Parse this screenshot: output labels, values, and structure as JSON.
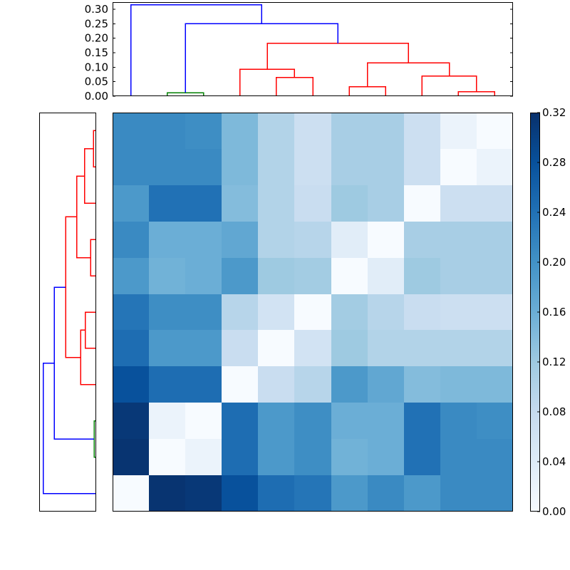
{
  "figure": {
    "type": "clustermap-with-dendrograms",
    "background_color": "#ffffff",
    "axis_color": "#000000",
    "text_color": "#000000",
    "colormap": {
      "name": "Blues",
      "stops": [
        "#f7fbff",
        "#deebf7",
        "#c6dbef",
        "#9ecae1",
        "#6baed6",
        "#4292c6",
        "#2171b5",
        "#08519c",
        "#08306b"
      ]
    },
    "line_colors": {
      "blue": "#0000ff",
      "red": "#ff0000",
      "green": "#008000"
    }
  },
  "chart_data": {
    "type": "heatmap",
    "title": "",
    "value_range": [
      0,
      0.32
    ],
    "grid": false,
    "matrix": {
      "n_rows": 11,
      "n_cols": 11,
      "values": [
        [
          0.21,
          0.21,
          0.205,
          0.145,
          0.1,
          0.07,
          0.11,
          0.11,
          0.07,
          0.02,
          0.0
        ],
        [
          0.21,
          0.21,
          0.21,
          0.145,
          0.1,
          0.07,
          0.11,
          0.11,
          0.07,
          0.0,
          0.02
        ],
        [
          0.19,
          0.24,
          0.24,
          0.14,
          0.1,
          0.075,
          0.12,
          0.11,
          0.0,
          0.07,
          0.07
        ],
        [
          0.21,
          0.16,
          0.16,
          0.17,
          0.1,
          0.095,
          0.035,
          0.0,
          0.11,
          0.11,
          0.11
        ],
        [
          0.19,
          0.155,
          0.16,
          0.19,
          0.12,
          0.115,
          0.0,
          0.035,
          0.12,
          0.11,
          0.11
        ],
        [
          0.235,
          0.205,
          0.205,
          0.095,
          0.06,
          0.0,
          0.115,
          0.095,
          0.075,
          0.07,
          0.07
        ],
        [
          0.245,
          0.19,
          0.19,
          0.075,
          0.0,
          0.06,
          0.12,
          0.1,
          0.1,
          0.1,
          0.1
        ],
        [
          0.28,
          0.245,
          0.245,
          0.0,
          0.075,
          0.095,
          0.19,
          0.17,
          0.14,
          0.145,
          0.145
        ],
        [
          0.31,
          0.02,
          0.0,
          0.245,
          0.19,
          0.205,
          0.16,
          0.16,
          0.24,
          0.21,
          0.205
        ],
        [
          0.315,
          0.0,
          0.02,
          0.245,
          0.19,
          0.205,
          0.155,
          0.16,
          0.24,
          0.21,
          0.21
        ],
        [
          0.0,
          0.315,
          0.31,
          0.28,
          0.245,
          0.235,
          0.19,
          0.21,
          0.19,
          0.21,
          0.21
        ]
      ]
    },
    "top_dendrogram": {
      "n_leaves": 11,
      "axis_tick_labels": [
        "0.00",
        "0.05",
        "0.10",
        "0.15",
        "0.20",
        "0.25",
        "0.30"
      ],
      "axis_tick_values": [
        0,
        0.05,
        0.1,
        0.15,
        0.2,
        0.25,
        0.3
      ],
      "axis_max": 0.3246,
      "merges": [
        {
          "id": "g",
          "a": 1,
          "b": 2,
          "height": 0.012,
          "color": "green"
        },
        {
          "id": "r1",
          "a": 4,
          "b": 5,
          "height": 0.064,
          "color": "red"
        },
        {
          "id": "r2",
          "a": 3,
          "b": "r1",
          "height": 0.093,
          "color": "red"
        },
        {
          "id": "r3",
          "a": 6,
          "b": 7,
          "height": 0.032,
          "color": "red"
        },
        {
          "id": "r4",
          "a": 9,
          "b": 10,
          "height": 0.015,
          "color": "red"
        },
        {
          "id": "r5",
          "a": 8,
          "b": "r4",
          "height": 0.069,
          "color": "red"
        },
        {
          "id": "r6",
          "a": "r3",
          "b": "r5",
          "height": 0.115,
          "color": "red"
        },
        {
          "id": "r7",
          "a": "r2",
          "b": "r6",
          "height": 0.182,
          "color": "red"
        },
        {
          "id": "b1",
          "a": "g",
          "b": "r7",
          "height": 0.25,
          "color": "blue"
        },
        {
          "id": "b2",
          "a": 0,
          "b": "b1",
          "height": 0.315,
          "color": "blue"
        }
      ]
    },
    "left_dendrogram": {
      "n_leaves": 11,
      "axis_max": 0.3404,
      "merges": [
        {
          "id": "r1",
          "a": 0,
          "b": 1,
          "height": 0.015,
          "color": "red"
        },
        {
          "id": "r2",
          "a": "r1",
          "b": 2,
          "height": 0.069,
          "color": "red"
        },
        {
          "id": "r3",
          "a": 3,
          "b": 4,
          "height": 0.032,
          "color": "red"
        },
        {
          "id": "r4",
          "a": "r2",
          "b": "r3",
          "height": 0.115,
          "color": "red"
        },
        {
          "id": "r5",
          "a": 5,
          "b": 6,
          "height": 0.064,
          "color": "red"
        },
        {
          "id": "r6",
          "a": "r5",
          "b": 7,
          "height": 0.093,
          "color": "red"
        },
        {
          "id": "r7",
          "a": "r4",
          "b": "r6",
          "height": 0.182,
          "color": "red"
        },
        {
          "id": "g1",
          "a": 8,
          "b": 9,
          "height": 0.012,
          "color": "green"
        },
        {
          "id": "b1",
          "a": "r7",
          "b": "g1",
          "height": 0.25,
          "color": "blue"
        },
        {
          "id": "b2",
          "a": "b1",
          "b": 10,
          "height": 0.315,
          "color": "blue"
        }
      ]
    },
    "colorbar": {
      "tick_labels": [
        "0.00",
        "0.04",
        "0.08",
        "0.12",
        "0.16",
        "0.20",
        "0.24",
        "0.28",
        "0.32"
      ],
      "tick_values": [
        0,
        0.04,
        0.08,
        0.12,
        0.16,
        0.2,
        0.24,
        0.28,
        0.32
      ]
    }
  }
}
